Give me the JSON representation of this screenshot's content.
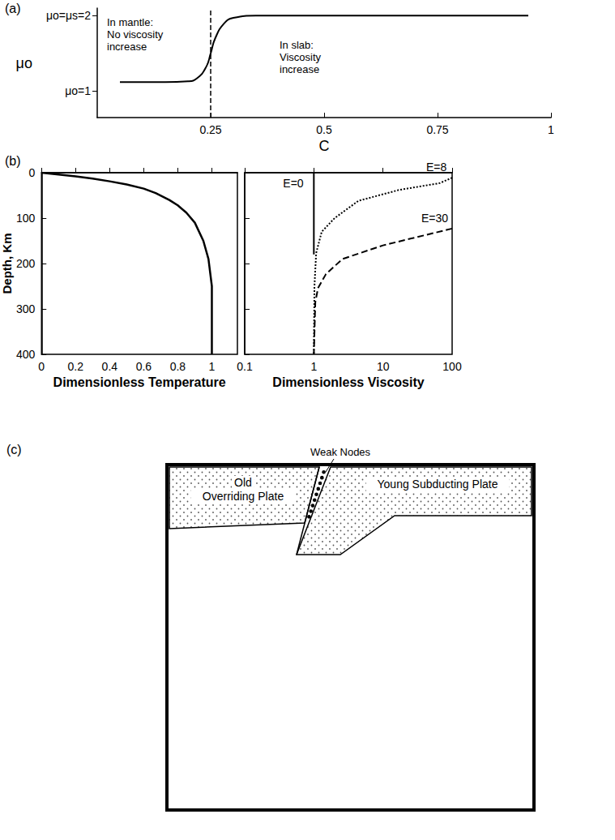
{
  "chart_data": [
    {
      "panel": "(a)",
      "type": "line",
      "color": "#000000",
      "grid": false,
      "x": [
        0.05,
        0.15,
        0.2,
        0.22,
        0.24,
        0.25,
        0.26,
        0.28,
        0.3,
        0.35,
        0.5,
        0.95
      ],
      "values": [
        1.12,
        1.12,
        1.13,
        1.17,
        1.32,
        1.5,
        1.7,
        1.9,
        1.97,
        2,
        2,
        2
      ],
      "xlabel": "C",
      "ylabel": "μo",
      "xlim": [
        0,
        1
      ],
      "xticks": [
        0.25,
        0.5,
        0.75,
        1
      ],
      "ylim": [
        0.65,
        2.1
      ],
      "yticks": [
        {
          "value": 1,
          "label": "μo=1"
        },
        {
          "value": 2,
          "label": "μo=μs=2"
        }
      ],
      "vlines": [
        0.25
      ],
      "annotations": [
        "In mantle:\nNo viscosity\nincrease",
        "In slab:\nViscosity\nincrease"
      ]
    },
    {
      "panel": "(b)",
      "type": "line",
      "color": "#000000",
      "grid": false,
      "x": [
        0,
        0.1,
        0.2,
        0.3,
        0.4,
        0.5,
        0.6,
        0.67,
        0.75,
        0.8,
        0.85,
        0.9,
        0.95,
        0.98,
        1,
        1
      ],
      "values": [
        0,
        4,
        8,
        13,
        19,
        26,
        35,
        45,
        60,
        72,
        88,
        110,
        150,
        190,
        250,
        400
      ],
      "xlabel": "Dimensionless Temperature",
      "ylabel": "Depth, Km",
      "xlim": [
        0,
        1.15
      ],
      "xticks": [
        0,
        0.2,
        0.4,
        0.6,
        0.8,
        1
      ],
      "ylim": [
        400,
        0
      ],
      "yticks": [
        0,
        100,
        200,
        300,
        400
      ]
    },
    {
      "type": "line",
      "log": "x",
      "grid": false,
      "tick_labels": "x",
      "xlabel": "Dimensionless Viscosity",
      "xlim": [
        0.1,
        100
      ],
      "xticks": [
        0.1,
        1,
        10,
        100
      ],
      "ylim": [
        400,
        0
      ],
      "yticks": [
        0,
        100,
        200,
        300,
        400
      ],
      "series": [
        {
          "name": "E=0",
          "color": "#000000",
          "line_style": "solid",
          "x": [
            1,
            1
          ],
          "values": [
            0,
            180
          ]
        },
        {
          "name": "E=8",
          "color": "#000000",
          "line_style": "dotted",
          "x": [
            100,
            66,
            17,
            4.4,
            2,
            1.3,
            1.08,
            1.02,
            1
          ],
          "values": [
            11,
            23,
            38,
            62,
            100,
            130,
            177,
            250,
            400
          ]
        },
        {
          "name": "E=30",
          "color": "#000000",
          "line_style": "dashed",
          "x": [
            100,
            10,
            2.6,
            1.5,
            1.15,
            1.05,
            1
          ],
          "values": [
            123,
            160,
            190,
            223,
            254,
            285,
            400
          ]
        }
      ]
    }
  ],
  "diagram": {
    "panel": "(c)",
    "labels": {
      "weak_zone": "Weak Nodes",
      "overriding_plate": "Old\nOverriding Plate",
      "subducting_plate": "Young Subducting Plate"
    }
  }
}
